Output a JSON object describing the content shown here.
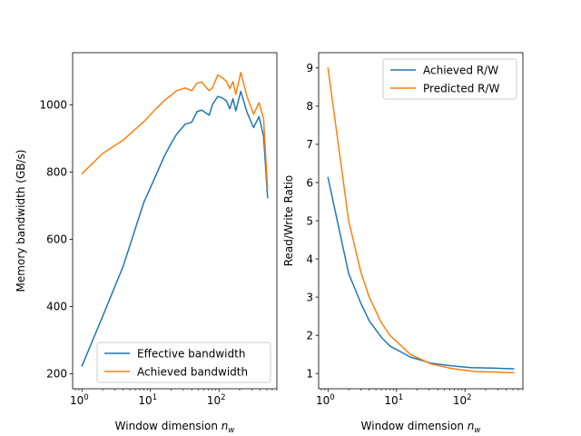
{
  "colors": {
    "blue": "#1f77b4",
    "orange": "#ff7f0e"
  },
  "chart_data": [
    {
      "type": "line",
      "xlabel": "Window dimension n_w",
      "xlabel_main": "Window dimension ",
      "xlabel_var": "n",
      "xlabel_sub": "w",
      "ylabel": "Memory bandwidth (GB/s)",
      "x_scale": "log",
      "xlim": [
        0.73,
        700
      ],
      "ylim": [
        155,
        1155
      ],
      "xtick_values": [
        1,
        10,
        100
      ],
      "xtick_labels": [
        [
          "10",
          "0"
        ],
        [
          "10",
          "1"
        ],
        [
          "10",
          "2"
        ]
      ],
      "ytick_values": [
        200,
        400,
        600,
        800,
        1000
      ],
      "ytick_labels": [
        "200",
        "400",
        "600",
        "800",
        "1000"
      ],
      "legend": {
        "position": "lower right",
        "labels": [
          "Effective bandwidth",
          "Achieved bandwidth"
        ]
      },
      "series": [
        {
          "name": "Effective bandwidth",
          "color": "#1f77b4",
          "x": [
            1,
            2,
            4,
            8,
            12,
            16,
            20,
            24,
            28,
            32,
            40,
            48,
            56,
            64,
            72,
            80,
            96,
            112,
            128,
            144,
            160,
            176,
            208,
            256,
            320,
            384,
            448,
            512
          ],
          "y": [
            223,
            370,
            520,
            710,
            790,
            848,
            885,
            912,
            928,
            942,
            948,
            980,
            984,
            976,
            969,
            1000,
            1025,
            1020,
            1012,
            988,
            1018,
            982,
            1040,
            978,
            932,
            965,
            906,
            724
          ]
        },
        {
          "name": "Achieved bandwidth",
          "color": "#ff7f0e",
          "x": [
            1,
            2,
            4,
            8,
            12,
            16,
            20,
            24,
            28,
            32,
            40,
            48,
            56,
            64,
            72,
            80,
            96,
            112,
            128,
            144,
            160,
            176,
            208,
            256,
            320,
            384,
            448,
            512
          ],
          "y": [
            795,
            855,
            895,
            950,
            988,
            1013,
            1028,
            1042,
            1046,
            1050,
            1042,
            1065,
            1068,
            1053,
            1042,
            1050,
            1089,
            1080,
            1070,
            1048,
            1069,
            1031,
            1096,
            1025,
            972,
            1006,
            958,
            750
          ]
        }
      ]
    },
    {
      "type": "line",
      "xlabel": "Window dimension n_w",
      "xlabel_main": "Window dimension ",
      "xlabel_var": "n",
      "xlabel_sub": "w",
      "ylabel": "Read/Write Ratio",
      "x_scale": "log",
      "xlim": [
        0.73,
        700
      ],
      "ylim": [
        0.6,
        9.4
      ],
      "xtick_values": [
        1,
        10,
        100
      ],
      "xtick_labels": [
        [
          "10",
          "0"
        ],
        [
          "10",
          "1"
        ],
        [
          "10",
          "2"
        ]
      ],
      "ytick_values": [
        1,
        2,
        3,
        4,
        5,
        6,
        7,
        8,
        9
      ],
      "ytick_labels": [
        "1",
        "2",
        "3",
        "4",
        "5",
        "6",
        "7",
        "8",
        "9"
      ],
      "legend": {
        "position": "upper right",
        "labels": [
          "Achieved R/W",
          "Predicted R/W"
        ]
      },
      "series": [
        {
          "name": "Achieved R/W",
          "color": "#1f77b4",
          "x": [
            1,
            2,
            3,
            4,
            6,
            8,
            16,
            32,
            64,
            128,
            150,
            256,
            512
          ],
          "y": [
            6.13,
            3.62,
            2.85,
            2.38,
            1.95,
            1.72,
            1.43,
            1.27,
            1.2,
            1.15,
            1.15,
            1.14,
            1.12
          ]
        },
        {
          "name": "Predicted R/W",
          "color": "#ff7f0e",
          "x": [
            1,
            2,
            3,
            4,
            6,
            8,
            16,
            32,
            64,
            128,
            150,
            256,
            512
          ],
          "y": [
            9.0,
            5.0,
            3.67,
            3.0,
            2.33,
            2.0,
            1.5,
            1.25,
            1.13,
            1.06,
            1.05,
            1.04,
            1.02
          ]
        }
      ]
    }
  ]
}
